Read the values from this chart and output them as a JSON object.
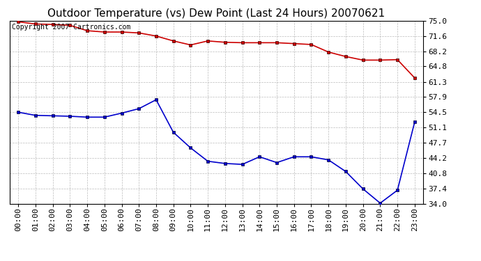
{
  "title": "Outdoor Temperature (vs) Dew Point (Last 24 Hours) 20070621",
  "copyright": "Copyright 2007 Cartronics.com",
  "x_labels": [
    "00:00",
    "01:00",
    "02:00",
    "03:00",
    "04:00",
    "05:00",
    "06:00",
    "07:00",
    "08:00",
    "09:00",
    "10:00",
    "11:00",
    "12:00",
    "13:00",
    "14:00",
    "15:00",
    "16:00",
    "17:00",
    "18:00",
    "19:00",
    "20:00",
    "21:00",
    "22:00",
    "23:00"
  ],
  "temp_data": [
    74.8,
    74.3,
    74.2,
    74.0,
    72.8,
    72.5,
    72.5,
    72.3,
    71.6,
    70.5,
    69.6,
    70.5,
    70.2,
    70.1,
    70.1,
    70.1,
    69.9,
    69.7,
    68.0,
    67.0,
    66.2,
    66.2,
    66.3,
    62.2
  ],
  "dew_data": [
    54.5,
    53.8,
    53.7,
    53.6,
    53.4,
    53.4,
    54.3,
    55.3,
    57.3,
    50.0,
    46.5,
    43.5,
    43.0,
    42.8,
    44.5,
    43.2,
    44.5,
    44.5,
    43.8,
    41.2,
    37.3,
    34.1,
    37.0,
    52.3
  ],
  "temp_color": "#cc0000",
  "dew_color": "#0000cc",
  "bg_color": "#ffffff",
  "plot_bg_color": "#ffffff",
  "grid_color": "#aaaaaa",
  "ylim_min": 34.0,
  "ylim_max": 75.0,
  "yticks": [
    34.0,
    37.4,
    40.8,
    44.2,
    47.7,
    51.1,
    54.5,
    57.9,
    61.3,
    64.8,
    68.2,
    71.6,
    75.0
  ],
  "title_fontsize": 11,
  "tick_fontsize": 8,
  "copyright_fontsize": 7,
  "marker_size": 3.5,
  "line_width": 1.2
}
